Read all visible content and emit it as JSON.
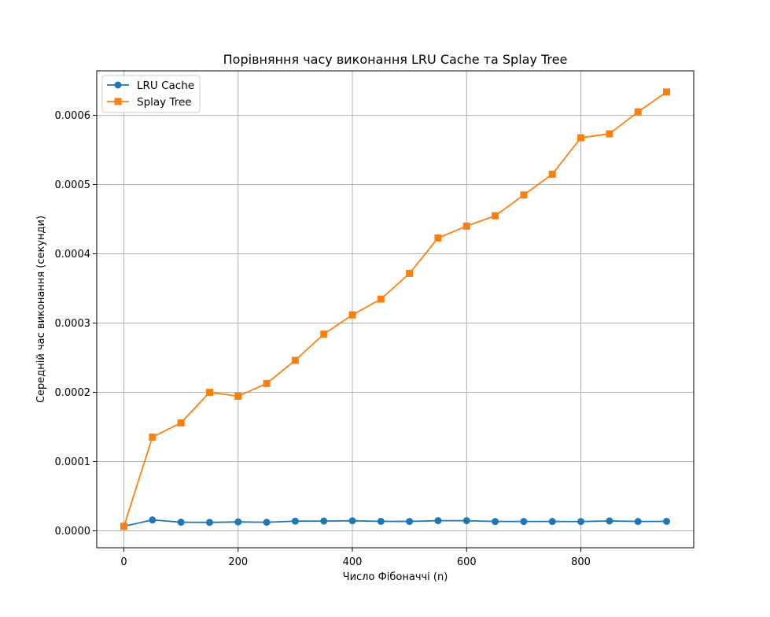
{
  "chart_data": {
    "type": "line",
    "title": "Порівняння часу виконання LRU Cache та Splay Tree",
    "xlabel": "Число Фібоначчі (n)",
    "ylabel": "Середній час виконання (секунди)",
    "xlim": [
      -47.5,
      997.5
    ],
    "ylim": [
      -2.45e-05,
      0.0006643
    ],
    "xticks": [
      0,
      200,
      400,
      600,
      800
    ],
    "xtick_labels": [
      "0",
      "200",
      "400",
      "600",
      "800"
    ],
    "yticks": [
      0,
      0.0001,
      0.0002,
      0.0003,
      0.0004,
      0.0005,
      0.0006
    ],
    "ytick_labels": [
      "0.0000",
      "0.0001",
      "0.0002",
      "0.0003",
      "0.0004",
      "0.0005",
      "0.0006"
    ],
    "grid": true,
    "legend_position": "top-left",
    "x": [
      0,
      50,
      100,
      150,
      200,
      250,
      300,
      350,
      400,
      450,
      500,
      550,
      600,
      650,
      700,
      750,
      800,
      850,
      900,
      950
    ],
    "series": [
      {
        "name": "LRU Cache",
        "color": "#1f77b4",
        "marker": "circle",
        "values": [
          6.5e-06,
          1.57e-05,
          1.24e-05,
          1.21e-05,
          1.28e-05,
          1.23e-05,
          1.39e-05,
          1.4e-05,
          1.45e-05,
          1.36e-05,
          1.35e-05,
          1.46e-05,
          1.46e-05,
          1.34e-05,
          1.34e-05,
          1.34e-05,
          1.33e-05,
          1.42e-05,
          1.34e-05,
          1.36e-05
        ]
      },
      {
        "name": "Splay Tree",
        "color": "#ff7f0e",
        "marker": "square",
        "values": [
          6.5e-06,
          0.0001353,
          0.0001559,
          0.0002,
          0.0001943,
          0.0002127,
          0.0002462,
          0.000284,
          0.0003118,
          0.0003346,
          0.0003717,
          0.0004229,
          0.00044,
          0.000455,
          0.000485,
          0.000515,
          0.0005676,
          0.0005733,
          0.000605,
          0.0006337
        ]
      }
    ]
  }
}
